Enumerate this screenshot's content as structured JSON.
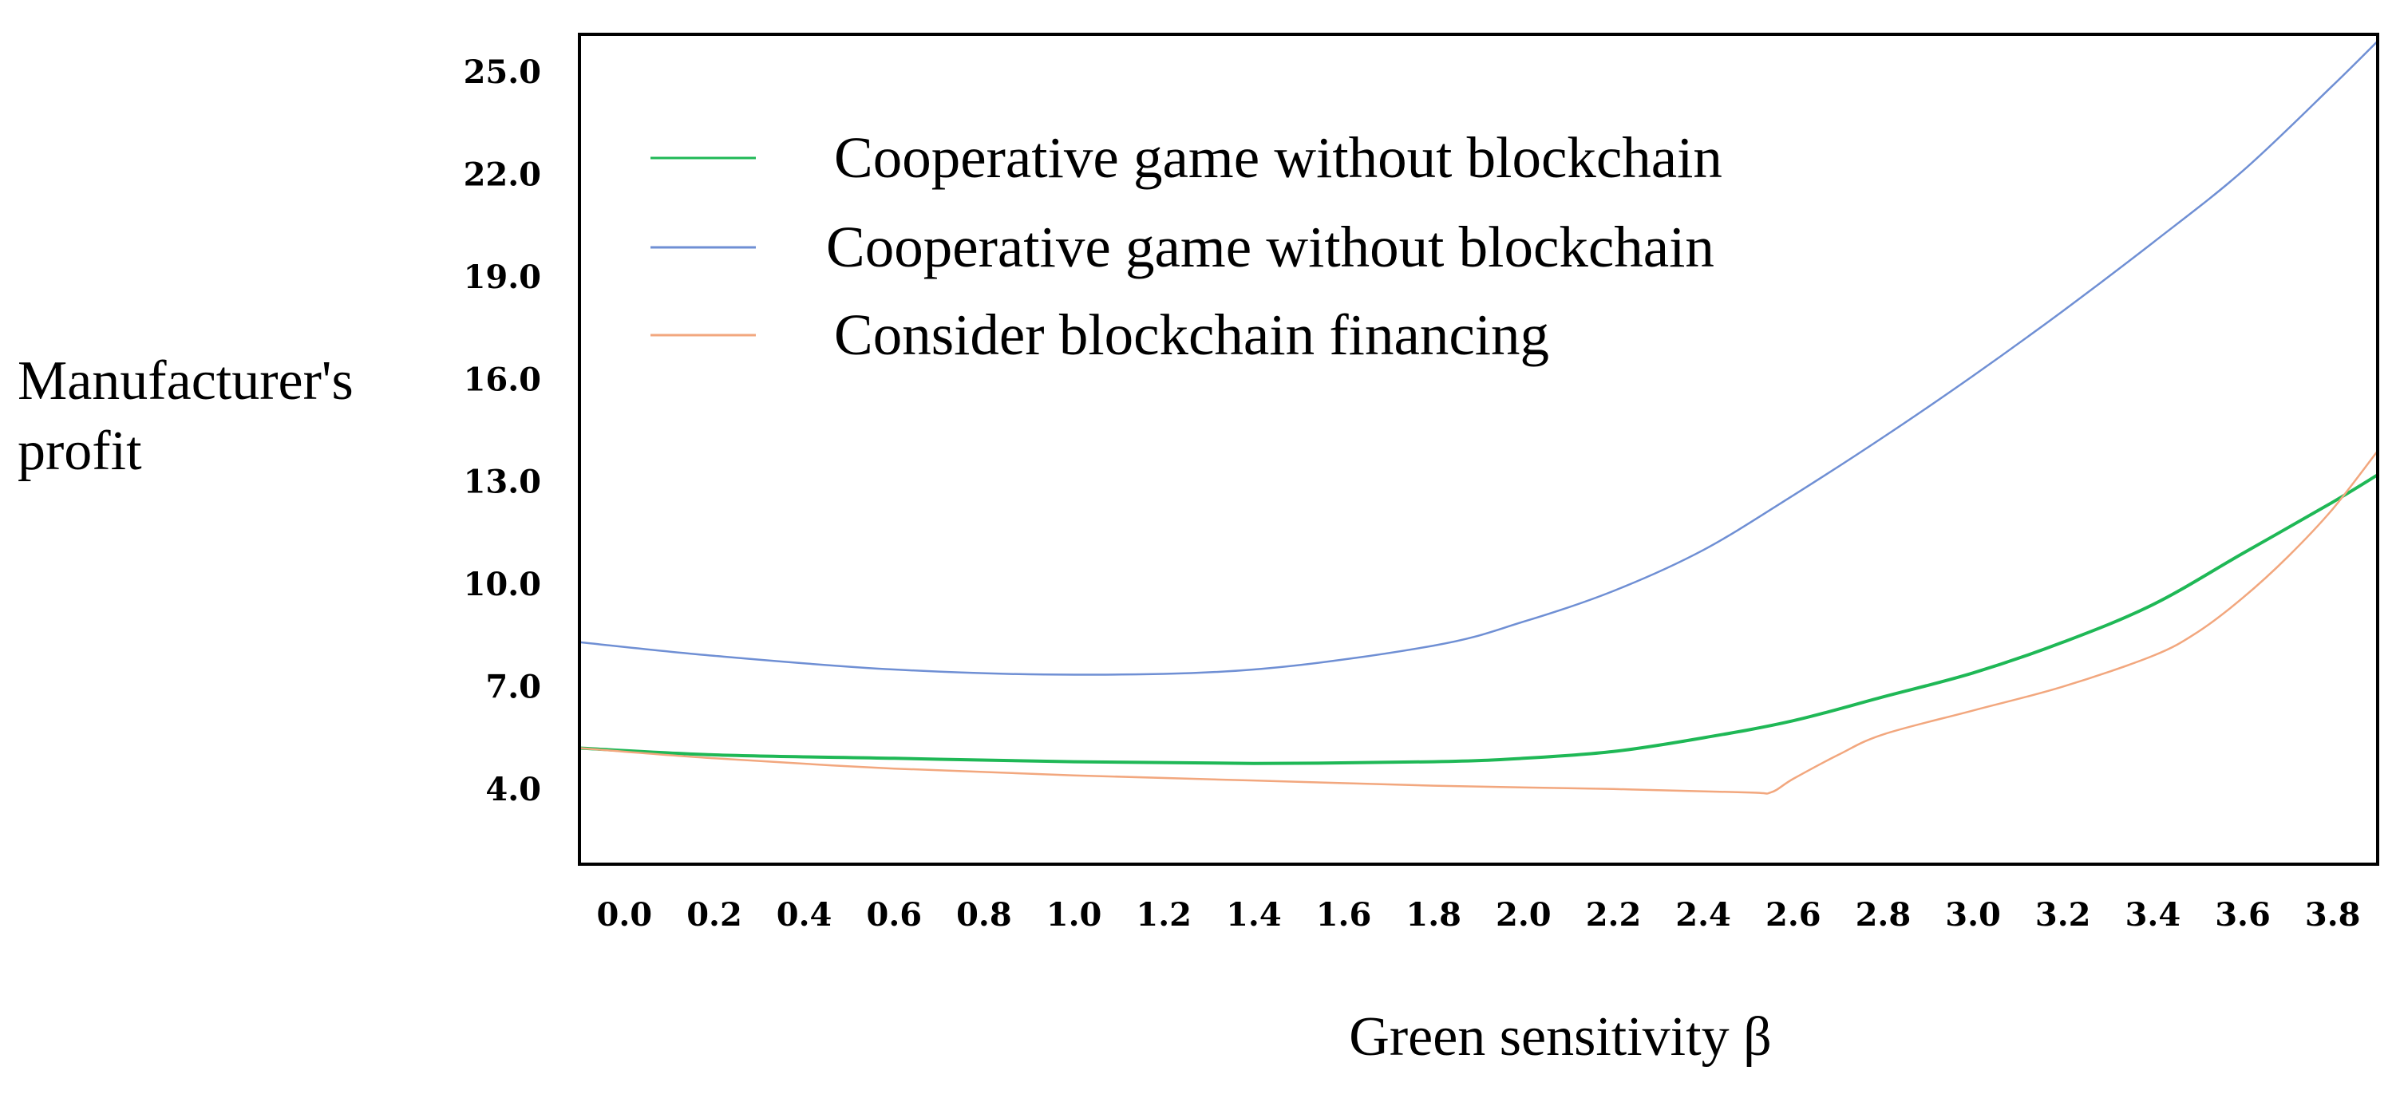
{
  "chart_data": {
    "type": "line",
    "title": "",
    "xlabel": "Green sensitivity β",
    "ylabel_lines": [
      "Manufacturer's",
      "profit"
    ],
    "xlim": [
      -0.1,
      3.9
    ],
    "ylim": [
      1.8,
      26.1
    ],
    "x_ticks": [
      0.0,
      0.2,
      0.4,
      0.6,
      0.8,
      1.0,
      1.2,
      1.4,
      1.6,
      1.8,
      2.0,
      2.2,
      2.4,
      2.6,
      2.8,
      3.0,
      3.2,
      3.4,
      3.6,
      3.8
    ],
    "x_tick_labels": [
      "0.0",
      "0.2",
      "0.4",
      "0.6",
      "0.8",
      "1.0",
      "1.2",
      "1.4",
      "1.6",
      "1.8",
      "2.0",
      "2.2",
      "2.4",
      "2.6",
      "2.8",
      "3.0",
      "3.2",
      "3.4",
      "3.6",
      "3.8"
    ],
    "y_ticks": [
      4.0,
      7.0,
      10.0,
      13.0,
      16.0,
      19.0,
      22.0,
      25.0
    ],
    "y_tick_labels": [
      "4.0",
      "7.0",
      "10.0",
      "13.0",
      "16.0",
      "19.0",
      "22.0",
      "25.0"
    ],
    "grid": false,
    "legend_position": "top-left",
    "series": [
      {
        "name": "Cooperative game without blockchain",
        "color": "#1fb856",
        "x": [
          -0.1,
          0.2,
          0.6,
          1.0,
          1.4,
          1.8,
          2.0,
          2.2,
          2.4,
          2.6,
          2.8,
          3.0,
          3.2,
          3.4,
          3.6,
          3.8,
          3.9
        ],
        "y": [
          5.2,
          5.0,
          4.9,
          4.8,
          4.75,
          4.8,
          4.9,
          5.1,
          5.5,
          6.0,
          6.7,
          7.4,
          8.3,
          9.4,
          10.9,
          12.4,
          13.2
        ]
      },
      {
        "name": "Cooperative game without blockchain",
        "color": "#6f8fd4",
        "x": [
          -0.1,
          0.2,
          0.6,
          1.0,
          1.4,
          1.8,
          2.0,
          2.2,
          2.4,
          2.6,
          2.8,
          3.0,
          3.2,
          3.4,
          3.6,
          3.8,
          3.9
        ],
        "y": [
          8.3,
          7.9,
          7.5,
          7.35,
          7.5,
          8.2,
          8.9,
          9.8,
          11.0,
          12.6,
          14.3,
          16.1,
          18.0,
          20.0,
          22.1,
          24.6,
          25.9
        ]
      },
      {
        "name": "Consider blockchain financing",
        "color": "#f2a77e",
        "x": [
          -0.1,
          0.2,
          0.6,
          1.0,
          1.4,
          1.8,
          2.2,
          2.5,
          2.55,
          2.6,
          2.7,
          2.8,
          3.0,
          3.2,
          3.4,
          3.5,
          3.6,
          3.7,
          3.8,
          3.9
        ],
        "y": [
          5.2,
          4.9,
          4.6,
          4.4,
          4.25,
          4.1,
          4.0,
          3.9,
          3.9,
          4.3,
          5.0,
          5.6,
          6.3,
          7.0,
          7.9,
          8.6,
          9.6,
          10.8,
          12.2,
          13.9
        ]
      }
    ]
  }
}
